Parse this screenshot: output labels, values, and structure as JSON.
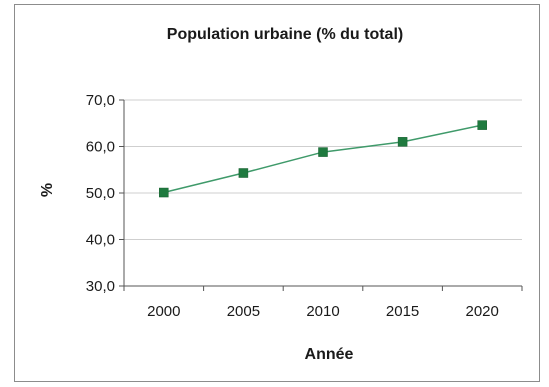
{
  "chart_data": {
    "type": "line",
    "title": "Population urbaine (% du total)",
    "xlabel": "Année",
    "ylabel": "%",
    "x": [
      "2000",
      "2005",
      "2010",
      "2015",
      "2020"
    ],
    "values": [
      50.1,
      54.3,
      58.8,
      61.0,
      64.6
    ],
    "ylim": [
      30,
      70
    ],
    "yticks": [
      "30,0",
      "40,0",
      "50,0",
      "60,0",
      "70,0"
    ],
    "grid": true,
    "legend": "none",
    "colors": {
      "line": "#3f9a6a",
      "marker": "#1f7a3f"
    }
  }
}
